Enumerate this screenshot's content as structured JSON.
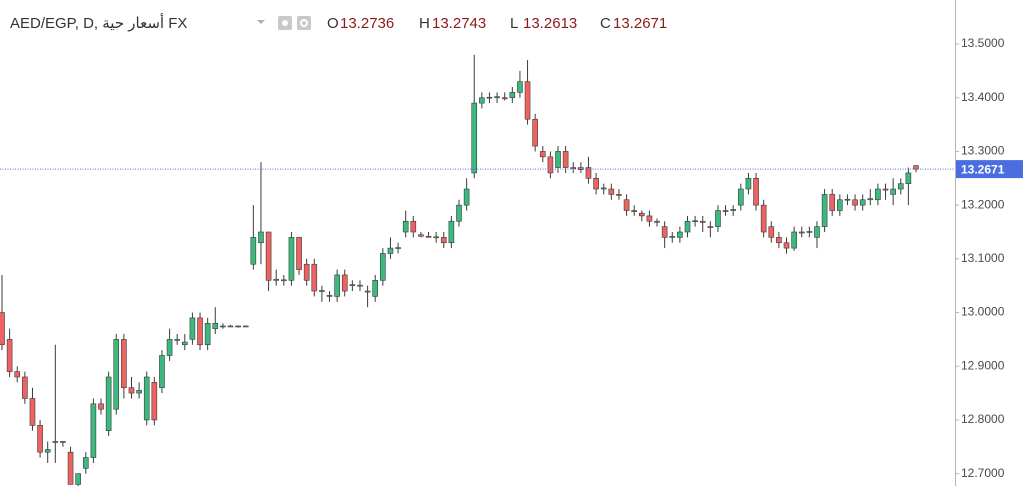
{
  "chart_data": {
    "type": "candlestick",
    "title": "AED/EGP, D, أسعار حية FX",
    "ohlc_labels": [
      "O",
      "H",
      "L",
      "C"
    ],
    "up_color": "#3cb97d",
    "down_color": "#ef6262",
    "last_price_color": "#4a6ee0",
    "ylim": [
      12.677,
      13.582
    ],
    "yticks": [
      {
        "value": 12.7,
        "label": "12.7000"
      },
      {
        "value": 12.8,
        "label": "12.8000"
      },
      {
        "value": 12.9,
        "label": "12.9000"
      },
      {
        "value": 13.0,
        "label": "13.0000"
      },
      {
        "value": 13.1,
        "label": "13.1000"
      },
      {
        "value": 13.2,
        "label": "13.2000"
      },
      {
        "value": 13.3,
        "label": "13.3000"
      },
      {
        "value": 13.4,
        "label": "13.4000"
      },
      {
        "value": 13.5,
        "label": "13.5000"
      }
    ],
    "ohlc": [
      [
        13.0,
        13.07,
        12.93,
        12.94
      ],
      [
        12.95,
        12.97,
        12.88,
        12.89
      ],
      [
        12.89,
        12.9,
        12.87,
        12.88
      ],
      [
        12.88,
        12.89,
        12.83,
        12.84
      ],
      [
        12.84,
        12.86,
        12.78,
        12.79
      ],
      [
        12.79,
        12.8,
        12.73,
        12.74
      ],
      [
        12.74,
        12.76,
        12.72,
        12.745
      ],
      [
        12.76,
        12.94,
        12.72,
        12.76
      ],
      [
        12.76,
        12.76,
        12.75,
        12.758
      ],
      [
        12.74,
        12.75,
        12.68,
        12.68
      ],
      [
        12.68,
        12.7,
        12.67,
        12.7
      ],
      [
        12.71,
        12.74,
        12.7,
        12.73
      ],
      [
        12.73,
        12.84,
        12.72,
        12.83
      ],
      [
        12.83,
        12.84,
        12.81,
        12.82
      ],
      [
        12.78,
        12.89,
        12.77,
        12.88
      ],
      [
        12.82,
        12.96,
        12.81,
        12.95
      ],
      [
        12.95,
        12.96,
        12.84,
        12.86
      ],
      [
        12.86,
        12.88,
        12.84,
        12.85
      ],
      [
        12.85,
        12.87,
        12.84,
        12.855
      ],
      [
        12.8,
        12.89,
        12.79,
        12.88
      ],
      [
        12.87,
        12.88,
        12.79,
        12.8
      ],
      [
        12.86,
        12.93,
        12.85,
        12.92
      ],
      [
        12.92,
        12.97,
        12.91,
        12.95
      ],
      [
        12.95,
        12.96,
        12.94,
        12.95
      ],
      [
        12.94,
        12.96,
        12.93,
        12.945
      ],
      [
        12.95,
        13.0,
        12.94,
        12.99
      ],
      [
        12.99,
        13.0,
        12.93,
        12.94
      ],
      [
        12.94,
        12.99,
        12.93,
        12.98
      ],
      [
        12.97,
        13.01,
        12.96,
        12.98
      ],
      [
        12.975,
        12.98,
        12.97,
        12.975
      ],
      [
        12.975,
        12.977,
        12.973,
        12.974
      ],
      [
        12.974,
        12.976,
        12.972,
        12.975
      ],
      [
        12.975,
        12.976,
        12.974,
        12.975
      ],
      [
        13.09,
        13.2,
        13.08,
        13.14
      ],
      [
        13.13,
        13.28,
        13.09,
        13.15
      ],
      [
        13.15,
        13.15,
        13.04,
        13.06
      ],
      [
        13.06,
        13.08,
        13.05,
        13.062
      ],
      [
        13.06,
        13.07,
        13.05,
        13.061
      ],
      [
        13.06,
        13.15,
        13.05,
        13.14
      ],
      [
        13.14,
        13.14,
        13.07,
        13.08
      ],
      [
        13.09,
        13.1,
        13.05,
        13.06
      ],
      [
        13.09,
        13.1,
        13.03,
        13.04
      ],
      [
        13.04,
        13.05,
        13.02,
        13.041
      ],
      [
        13.03,
        13.04,
        13.02,
        13.032
      ],
      [
        13.03,
        13.08,
        13.02,
        13.07
      ],
      [
        13.07,
        13.08,
        13.03,
        13.04
      ],
      [
        13.05,
        13.06,
        13.04,
        13.052
      ],
      [
        13.05,
        13.06,
        13.04,
        13.051
      ],
      [
        13.04,
        13.05,
        13.01,
        13.039
      ],
      [
        13.03,
        13.07,
        13.02,
        13.06
      ],
      [
        13.06,
        13.12,
        13.05,
        13.11
      ],
      [
        13.11,
        13.14,
        13.1,
        13.12
      ],
      [
        13.12,
        13.13,
        13.11,
        13.121
      ],
      [
        13.15,
        13.19,
        13.14,
        13.17
      ],
      [
        13.17,
        13.18,
        13.14,
        13.15
      ],
      [
        13.145,
        13.15,
        13.14,
        13.142
      ],
      [
        13.142,
        13.15,
        13.14,
        13.141
      ],
      [
        13.14,
        13.15,
        13.13,
        13.141
      ],
      [
        13.14,
        13.15,
        13.12,
        13.13
      ],
      [
        13.13,
        13.18,
        13.12,
        13.17
      ],
      [
        13.17,
        13.21,
        13.16,
        13.2
      ],
      [
        13.2,
        13.25,
        13.19,
        13.23
      ],
      [
        13.26,
        13.48,
        13.25,
        13.39
      ],
      [
        13.39,
        13.41,
        13.38,
        13.4
      ],
      [
        13.4,
        13.41,
        13.39,
        13.401
      ],
      [
        13.4,
        13.41,
        13.39,
        13.402
      ],
      [
        13.4,
        13.41,
        13.395,
        13.398
      ],
      [
        13.4,
        13.42,
        13.39,
        13.41
      ],
      [
        13.41,
        13.45,
        13.4,
        13.43
      ],
      [
        13.43,
        13.47,
        13.35,
        13.36
      ],
      [
        13.36,
        13.37,
        13.3,
        13.31
      ],
      [
        13.3,
        13.31,
        13.28,
        13.29
      ],
      [
        13.29,
        13.3,
        13.25,
        13.26
      ],
      [
        13.27,
        13.31,
        13.26,
        13.3
      ],
      [
        13.3,
        13.31,
        13.26,
        13.27
      ],
      [
        13.27,
        13.28,
        13.26,
        13.268
      ],
      [
        13.27,
        13.28,
        13.26,
        13.266
      ],
      [
        13.27,
        13.29,
        13.24,
        13.25
      ],
      [
        13.25,
        13.26,
        13.22,
        13.23
      ],
      [
        13.23,
        13.24,
        13.22,
        13.232
      ],
      [
        13.23,
        13.24,
        13.21,
        13.22
      ],
      [
        13.22,
        13.23,
        13.21,
        13.219
      ],
      [
        13.21,
        13.22,
        13.18,
        13.19
      ],
      [
        13.19,
        13.2,
        13.18,
        13.188
      ],
      [
        13.185,
        13.19,
        13.17,
        13.18
      ],
      [
        13.18,
        13.19,
        13.16,
        13.17
      ],
      [
        13.17,
        13.175,
        13.16,
        13.168
      ],
      [
        13.16,
        13.17,
        13.12,
        13.14
      ],
      [
        13.14,
        13.15,
        13.13,
        13.142
      ],
      [
        13.14,
        13.16,
        13.13,
        13.15
      ],
      [
        13.15,
        13.18,
        13.14,
        13.17
      ],
      [
        13.17,
        13.18,
        13.16,
        13.171
      ],
      [
        13.17,
        13.18,
        13.15,
        13.168
      ],
      [
        13.16,
        13.17,
        13.14,
        13.158
      ],
      [
        13.16,
        13.2,
        13.15,
        13.19
      ],
      [
        13.19,
        13.2,
        13.18,
        13.188
      ],
      [
        13.19,
        13.2,
        13.18,
        13.192
      ],
      [
        13.2,
        13.24,
        13.19,
        13.23
      ],
      [
        13.23,
        13.26,
        13.22,
        13.25
      ],
      [
        13.25,
        13.26,
        13.19,
        13.2
      ],
      [
        13.2,
        13.21,
        13.14,
        13.15
      ],
      [
        13.16,
        13.17,
        13.13,
        13.14
      ],
      [
        13.14,
        13.15,
        13.12,
        13.13
      ],
      [
        13.13,
        13.14,
        13.11,
        13.12
      ],
      [
        13.12,
        13.16,
        13.115,
        13.15
      ],
      [
        13.15,
        13.16,
        13.14,
        13.148
      ],
      [
        13.15,
        13.16,
        13.14,
        13.151
      ],
      [
        13.14,
        13.17,
        13.12,
        13.16
      ],
      [
        13.16,
        13.23,
        13.15,
        13.22
      ],
      [
        13.22,
        13.23,
        13.18,
        13.19
      ],
      [
        13.19,
        13.22,
        13.18,
        13.21
      ],
      [
        13.21,
        13.22,
        13.2,
        13.211
      ],
      [
        13.21,
        13.22,
        13.19,
        13.2
      ],
      [
        13.2,
        13.22,
        13.19,
        13.21
      ],
      [
        13.21,
        13.23,
        13.2,
        13.212
      ],
      [
        13.21,
        13.24,
        13.2,
        13.23
      ],
      [
        13.23,
        13.24,
        13.21,
        13.228
      ],
      [
        13.22,
        13.25,
        13.2,
        13.23
      ],
      [
        13.23,
        13.25,
        13.22,
        13.24
      ],
      [
        13.24,
        13.27,
        13.2,
        13.26
      ],
      [
        13.2736,
        13.2743,
        13.2613,
        13.2671
      ]
    ]
  }
}
